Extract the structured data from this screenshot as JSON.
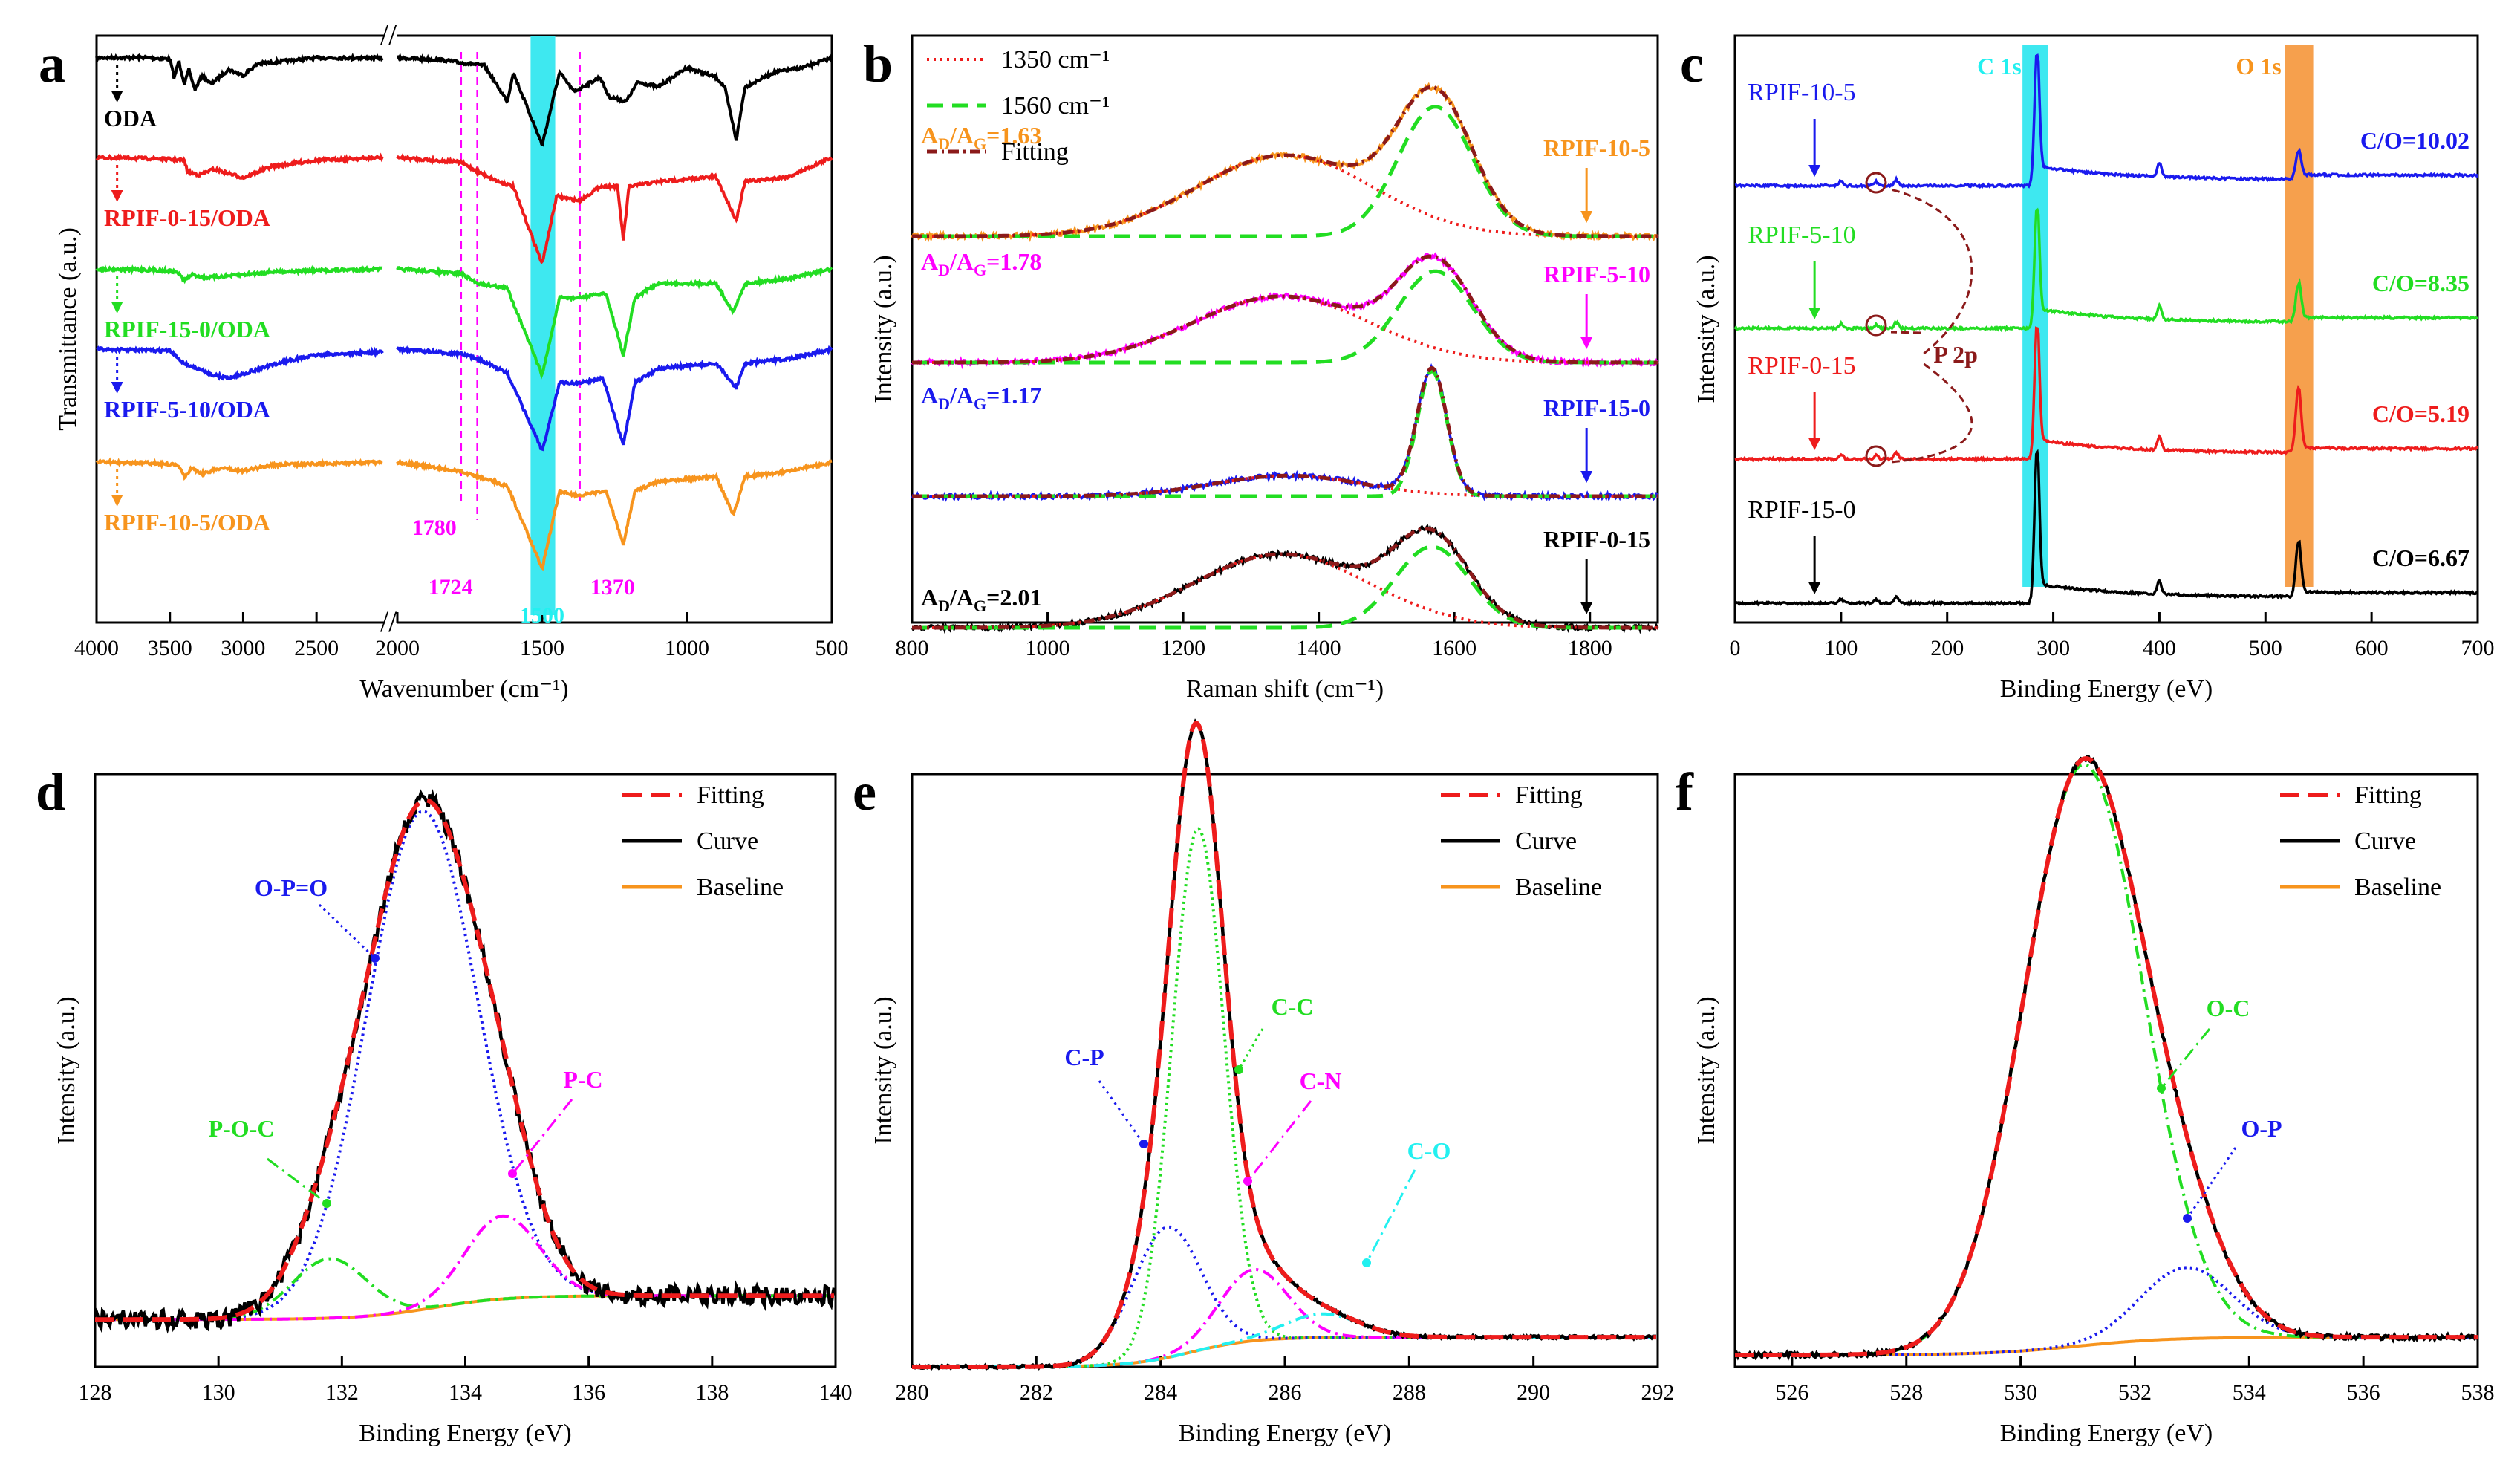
{
  "figure": {
    "colors": {
      "black": "#000000",
      "red": "#ee1c1c",
      "green": "#22dd22",
      "blue": "#1a1aee",
      "orange": "#f7941d",
      "magenta": "#ff00ff",
      "cyan": "#22f0f0",
      "darkred": "#8b1a1a",
      "cyan_band": "#3ee8f0",
      "orange_band": "#f6a04d"
    }
  },
  "chart_data": [
    {
      "panel": "a",
      "type": "line",
      "title": "",
      "xlabel": "Wavenumber (cm⁻¹)",
      "ylabel": "Transmittance (a.u.)",
      "xlim_left": [
        4000,
        2050
      ],
      "xlim_right": [
        2000,
        500
      ],
      "xticks_left": [
        4000,
        3500,
        3000,
        2500
      ],
      "xticks_right": [
        2000,
        1500,
        1000,
        500
      ],
      "series": [
        {
          "name": "ODA",
          "color": "black",
          "offset": 0.9,
          "points_left": [
            [
              4000,
              0
            ],
            [
              3700,
              0.01
            ],
            [
              3500,
              -0.02
            ],
            [
              3470,
              -0.35
            ],
            [
              3440,
              -0.05
            ],
            [
              3400,
              -0.45
            ],
            [
              3370,
              -0.2
            ],
            [
              3330,
              -0.55
            ],
            [
              3280,
              -0.3
            ],
            [
              3220,
              -0.45
            ],
            [
              3100,
              -0.2
            ],
            [
              3000,
              -0.3
            ],
            [
              2900,
              -0.1
            ],
            [
              2500,
              0
            ],
            [
              2050,
              0
            ]
          ],
          "points_right": [
            [
              2000,
              0
            ],
            [
              1850,
              -0.02
            ],
            [
              1780,
              -0.05
            ],
            [
              1700,
              -0.08
            ],
            [
              1620,
              -0.45
            ],
            [
              1600,
              -0.15
            ],
            [
              1500,
              -0.9
            ],
            [
              1440,
              -0.15
            ],
            [
              1390,
              -0.35
            ],
            [
              1300,
              -0.2
            ],
            [
              1270,
              -0.4
            ],
            [
              1210,
              -0.45
            ],
            [
              1170,
              -0.25
            ],
            [
              1100,
              -0.3
            ],
            [
              1000,
              -0.1
            ],
            [
              900,
              -0.2
            ],
            [
              870,
              -0.3
            ],
            [
              830,
              -0.85
            ],
            [
              800,
              -0.3
            ],
            [
              700,
              -0.15
            ],
            [
              600,
              -0.1
            ],
            [
              500,
              0
            ]
          ]
        },
        {
          "name": "RPIF-0-15/ODA",
          "color": "red",
          "offset": 0.0,
          "points_left": [
            [
              4000,
              0
            ],
            [
              3600,
              -0.02
            ],
            [
              3400,
              -0.05
            ],
            [
              3380,
              -0.25
            ],
            [
              3300,
              -0.3
            ],
            [
              3200,
              -0.2
            ],
            [
              3000,
              -0.35
            ],
            [
              2800,
              -0.15
            ],
            [
              2500,
              -0.05
            ],
            [
              2050,
              0
            ]
          ],
          "points_right": [
            [
              2000,
              0
            ],
            [
              1780,
              -0.05
            ],
            [
              1720,
              -0.15
            ],
            [
              1650,
              -0.25
            ],
            [
              1600,
              -0.3
            ],
            [
              1500,
              -1.1
            ],
            [
              1450,
              -0.4
            ],
            [
              1370,
              -0.45
            ],
            [
              1300,
              -0.3
            ],
            [
              1240,
              -0.3
            ],
            [
              1220,
              -0.85
            ],
            [
              1200,
              -0.3
            ],
            [
              1100,
              -0.25
            ],
            [
              900,
              -0.2
            ],
            [
              830,
              -0.65
            ],
            [
              800,
              -0.25
            ],
            [
              650,
              -0.2
            ],
            [
              500,
              0
            ]
          ]
        },
        {
          "name": "RPIF-15-0/ODA",
          "color": "green",
          "offset": 0.0,
          "points_left": [
            [
              4000,
              0
            ],
            [
              3600,
              -0.02
            ],
            [
              3450,
              -0.05
            ],
            [
              3400,
              -0.2
            ],
            [
              3350,
              -0.1
            ],
            [
              3250,
              -0.15
            ],
            [
              3000,
              -0.1
            ],
            [
              2800,
              -0.05
            ],
            [
              2050,
              0
            ]
          ],
          "points_right": [
            [
              2000,
              0
            ],
            [
              1780,
              -0.05
            ],
            [
              1720,
              -0.15
            ],
            [
              1620,
              -0.2
            ],
            [
              1500,
              -1.1
            ],
            [
              1440,
              -0.3
            ],
            [
              1370,
              -0.3
            ],
            [
              1280,
              -0.25
            ],
            [
              1220,
              -0.9
            ],
            [
              1180,
              -0.3
            ],
            [
              1100,
              -0.15
            ],
            [
              900,
              -0.15
            ],
            [
              840,
              -0.45
            ],
            [
              800,
              -0.15
            ],
            [
              650,
              -0.1
            ],
            [
              500,
              0
            ]
          ]
        },
        {
          "name": "RPIF-5-10/ODA",
          "color": "blue",
          "offset": 0.0,
          "points_left": [
            [
              4000,
              0
            ],
            [
              3500,
              -0.03
            ],
            [
              3400,
              -0.25
            ],
            [
              3300,
              -0.35
            ],
            [
              3200,
              -0.45
            ],
            [
              3100,
              -0.5
            ],
            [
              2900,
              -0.35
            ],
            [
              2700,
              -0.2
            ],
            [
              2500,
              -0.1
            ],
            [
              2050,
              -0.05
            ]
          ],
          "points_right": [
            [
              2000,
              0
            ],
            [
              1780,
              -0.05
            ],
            [
              1720,
              -0.1
            ],
            [
              1620,
              -0.25
            ],
            [
              1500,
              -1.05
            ],
            [
              1440,
              -0.35
            ],
            [
              1370,
              -0.35
            ],
            [
              1290,
              -0.3
            ],
            [
              1220,
              -1.0
            ],
            [
              1180,
              -0.35
            ],
            [
              1100,
              -0.2
            ],
            [
              900,
              -0.15
            ],
            [
              830,
              -0.4
            ],
            [
              800,
              -0.15
            ],
            [
              650,
              -0.1
            ],
            [
              500,
              0
            ]
          ]
        },
        {
          "name": "RPIF-10-5/ODA",
          "color": "orange",
          "offset": 0.0,
          "points_left": [
            [
              4000,
              0
            ],
            [
              3600,
              -0.02
            ],
            [
              3450,
              -0.05
            ],
            [
              3400,
              -0.25
            ],
            [
              3350,
              -0.1
            ],
            [
              3280,
              -0.2
            ],
            [
              3150,
              -0.1
            ],
            [
              3000,
              -0.15
            ],
            [
              2800,
              -0.05
            ],
            [
              2050,
              0
            ]
          ],
          "points_right": [
            [
              2000,
              0
            ],
            [
              1780,
              -0.1
            ],
            [
              1720,
              -0.15
            ],
            [
              1620,
              -0.25
            ],
            [
              1500,
              -1.1
            ],
            [
              1440,
              -0.3
            ],
            [
              1370,
              -0.35
            ],
            [
              1280,
              -0.3
            ],
            [
              1220,
              -0.85
            ],
            [
              1180,
              -0.3
            ],
            [
              1100,
              -0.2
            ],
            [
              900,
              -0.15
            ],
            [
              840,
              -0.55
            ],
            [
              800,
              -0.15
            ],
            [
              650,
              -0.1
            ],
            [
              500,
              0
            ]
          ]
        }
      ],
      "bands": [
        {
          "x": 1500,
          "label": "1500",
          "color": "cyan"
        }
      ],
      "dashed_lines": [
        {
          "x": 1780,
          "label": "1780"
        },
        {
          "x": 1724,
          "label": "1724"
        },
        {
          "x": 1370,
          "label": "1370"
        }
      ]
    },
    {
      "panel": "b",
      "type": "line",
      "title": "",
      "xlabel": "Raman shift (cm⁻¹)",
      "ylabel": "Intensity (a.u.)",
      "xlim": [
        800,
        1900
      ],
      "xticks": [
        800,
        1000,
        1200,
        1400,
        1600,
        1800
      ],
      "legend": [
        "1350 cm⁻¹",
        "1560 cm⁻¹",
        "Fitting"
      ],
      "spectra": [
        {
          "name": "RPIF-10-5",
          "color": "orange",
          "ratio_label": "A",
          "ratio_sub": "D",
          "ratio_mid": "/A",
          "ratio_sub2": "G",
          "ratio_value": "=1.63",
          "D_amp": 0.55,
          "D_center": 1350,
          "D_width": 130,
          "G_amp": 0.88,
          "G_center": 1572,
          "G_width": 55
        },
        {
          "name": "RPIF-5-10",
          "color": "magenta",
          "ratio_label": "A",
          "ratio_sub": "D",
          "ratio_mid": "/A",
          "ratio_sub2": "G",
          "ratio_value": "=1.78",
          "D_amp": 0.45,
          "D_center": 1345,
          "D_width": 130,
          "G_amp": 0.62,
          "G_center": 1572,
          "G_width": 55
        },
        {
          "name": "RPIF-15-0",
          "color": "blue",
          "ratio_label": "A",
          "ratio_sub": "D",
          "ratio_mid": "/A",
          "ratio_sub2": "G",
          "ratio_value": "=1.17",
          "D_amp": 0.14,
          "D_center": 1355,
          "D_width": 110,
          "G_amp": 0.85,
          "G_center": 1567,
          "G_width": 22
        },
        {
          "name": "RPIF-0-15",
          "color": "black",
          "ratio_label": "A",
          "ratio_sub": "D",
          "ratio_mid": "/A",
          "ratio_sub2": "G",
          "ratio_value": "=2.01",
          "D_amp": 0.5,
          "D_center": 1345,
          "D_width": 130,
          "G_amp": 0.55,
          "G_center": 1567,
          "G_width": 55
        }
      ],
      "arrow_x": 1795
    },
    {
      "panel": "c",
      "type": "line",
      "title": "",
      "xlabel": "Binding Energy (eV)",
      "ylabel": "Intensity (a.u.)",
      "xlim": [
        0,
        700
      ],
      "xticks": [
        0,
        100,
        200,
        300,
        400,
        500,
        600,
        700
      ],
      "bands": [
        {
          "x": 284.5,
          "label": "C 1s",
          "color": "cyan"
        },
        {
          "x": 531,
          "label": "O 1s",
          "color": "orange"
        }
      ],
      "spectra": [
        {
          "name": "RPIF-10-5",
          "color": "blue",
          "ratio": "C/O=10.02",
          "C_amp": 1.0,
          "O_amp": 0.2
        },
        {
          "name": "RPIF-5-10",
          "color": "green",
          "ratio": "C/O=8.35",
          "C_amp": 0.9,
          "O_amp": 0.28
        },
        {
          "name": "RPIF-0-15",
          "color": "red",
          "ratio": "C/O=5.19",
          "C_amp": 1.0,
          "O_amp": 0.48
        },
        {
          "name": "RPIF-15-0",
          "color": "black",
          "ratio": "C/O=6.67",
          "C_amp": 1.15,
          "O_amp": 0.4
        }
      ],
      "annotation": "P 2p"
    },
    {
      "panel": "d",
      "type": "line",
      "title": "",
      "xlabel": "Binding Energy (eV)",
      "ylabel": "Intensity (a.u.)",
      "xlim": [
        128,
        140
      ],
      "xticks": [
        128,
        130,
        132,
        134,
        136,
        138,
        140
      ],
      "legend": [
        "Fitting",
        "Curve",
        "Baseline"
      ],
      "peaks": [
        {
          "label": "O-P=O",
          "color": "blue",
          "center": 133.3,
          "amp": 0.84,
          "width": 0.9
        },
        {
          "label": "P-O-C",
          "color": "green",
          "center": 131.8,
          "amp": 0.1,
          "width": 0.6
        },
        {
          "label": "P-C",
          "color": "magenta",
          "center": 134.6,
          "amp": 0.14,
          "width": 0.6
        }
      ]
    },
    {
      "panel": "e",
      "type": "line",
      "title": "",
      "xlabel": "Binding Energy (eV)",
      "ylabel": "Intensity (a.u.)",
      "xlim": [
        280,
        292
      ],
      "xticks": [
        280,
        282,
        284,
        286,
        288,
        290,
        292
      ],
      "legend": [
        "Fitting",
        "Curve",
        "Baseline"
      ],
      "peaks": [
        {
          "label": "C-C",
          "color": "green",
          "center": 284.6,
          "amp": 0.88,
          "width": 0.42
        },
        {
          "label": "C-P",
          "color": "blue",
          "center": 284.1,
          "amp": 0.22,
          "width": 0.55
        },
        {
          "label": "C-N",
          "color": "magenta",
          "center": 285.5,
          "amp": 0.12,
          "width": 0.55
        },
        {
          "label": "C-O",
          "color": "cyan",
          "center": 286.6,
          "amp": 0.04,
          "width": 0.6
        }
      ]
    },
    {
      "panel": "f",
      "type": "line",
      "title": "",
      "xlabel": "Binding Energy (eV)",
      "ylabel": "Intensity (a.u.)",
      "xlim": [
        525,
        538
      ],
      "xticks": [
        526,
        528,
        530,
        532,
        534,
        536,
        538
      ],
      "legend": [
        "Fitting",
        "Curve",
        "Baseline"
      ],
      "peaks": [
        {
          "label": "O-C",
          "color": "green",
          "center": 531.1,
          "amp": 0.98,
          "width": 1.05
        },
        {
          "label": "O-P",
          "color": "blue",
          "center": 532.9,
          "amp": 0.12,
          "width": 0.8
        }
      ]
    }
  ]
}
